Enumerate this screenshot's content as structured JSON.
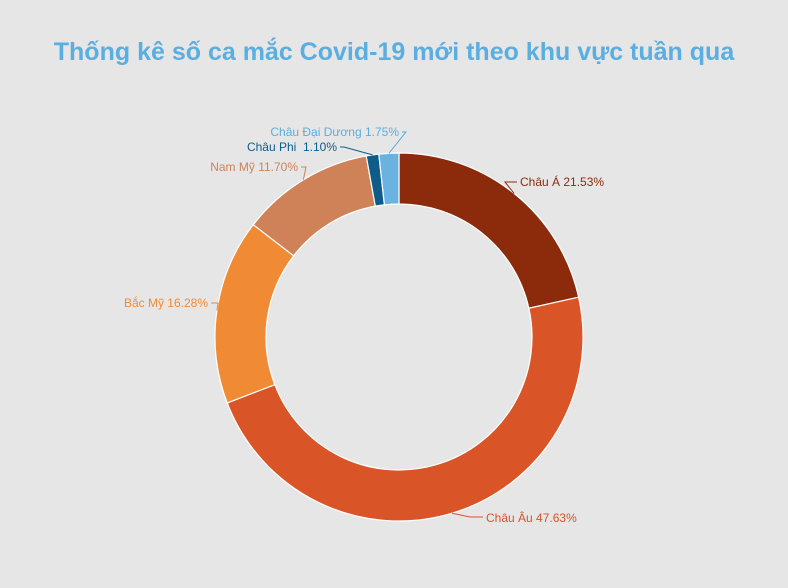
{
  "chart_data": {
    "type": "pie",
    "title": "Thống kê số ca mắc Covid-19 mới theo khu vực tuần qua",
    "donut": true,
    "slices": [
      {
        "label": "Châu Á 21.53%",
        "name": "Châu Á",
        "value": 21.53,
        "color": "#8b2b0b"
      },
      {
        "label": "Châu Âu 47.63%",
        "name": "Châu Âu",
        "value": 47.63,
        "color": "#d95427"
      },
      {
        "label": "Bắc Mỹ 16.28%",
        "name": "Bắc Mỹ",
        "value": 16.28,
        "color": "#f08a35"
      },
      {
        "label": "Nam Mỹ 11.70%",
        "name": "Nam Mỹ",
        "value": 11.7,
        "color": "#cf8258"
      },
      {
        "label": "Châu Phi  1.10%",
        "name": "Châu Phi",
        "value": 1.1,
        "color": "#0e5c8a"
      },
      {
        "label": "Châu Đại Dương 1.75%",
        "name": "Châu Đại Dương",
        "value": 1.75,
        "color": "#6ab3e0"
      }
    ]
  },
  "colors": {
    "background": "#e6e6e6",
    "title": "#5aaee0",
    "label_chau_phi": "#0e5c8a",
    "label_chau_dai_duong": "#5aaee0"
  }
}
